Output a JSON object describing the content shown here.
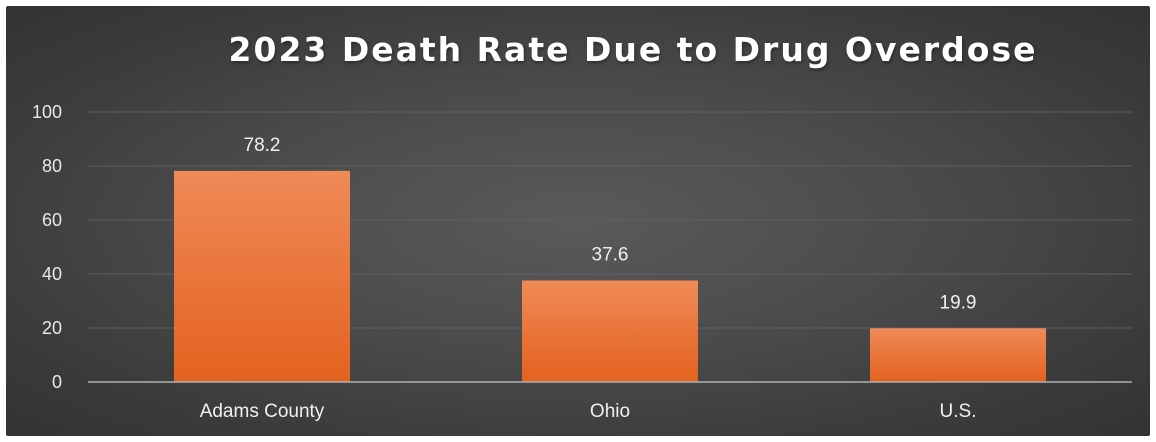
{
  "chart_data": {
    "type": "bar",
    "title": "2023 Death Rate Due to Drug Overdose",
    "categories": [
      "Adams County",
      "Ohio",
      "U.S."
    ],
    "values": [
      78.2,
      37.6,
      19.9
    ],
    "data_labels": [
      "78.2",
      "37.6",
      "19.9"
    ],
    "ylim": [
      0,
      100
    ],
    "yticks": [
      0,
      20,
      40,
      60,
      80,
      100
    ],
    "ytick_labels": [
      "0",
      "20",
      "40",
      "60",
      "80",
      "100"
    ],
    "xlabel": "",
    "ylabel": "",
    "grid": true,
    "legend": "none",
    "colors": {
      "bar_top": "#ef8a57",
      "bar_bottom": "#e4621f",
      "grid": "#5f5f5f",
      "axis": "#b0b0b0"
    }
  }
}
